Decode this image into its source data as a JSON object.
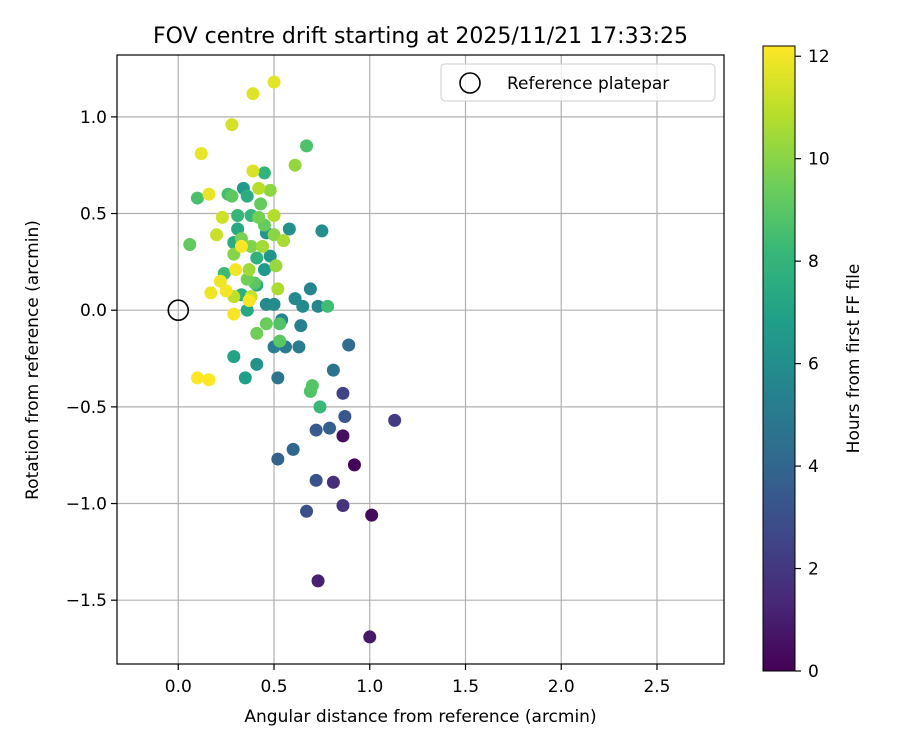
{
  "chart_data": {
    "type": "scatter",
    "title": "FOV centre drift starting at 2025/11/21 17:33:25",
    "xlabel": "Angular distance from reference (arcmin)",
    "ylabel": "Rotation from reference (arcmin)",
    "xlim": [
      -0.32,
      2.85
    ],
    "ylim": [
      -1.83,
      1.32
    ],
    "xticks": [
      0.0,
      0.5,
      1.0,
      1.5,
      2.0,
      2.5
    ],
    "xtick_labels": [
      "0.0",
      "0.5",
      "1.0",
      "1.5",
      "2.0",
      "2.5"
    ],
    "yticks": [
      1.0,
      0.5,
      0.0,
      -0.5,
      -1.0,
      -1.5
    ],
    "ytick_labels": [
      "1.0",
      "0.5",
      "0.0",
      "−0.5",
      "−1.0",
      "−1.5"
    ],
    "grid": true,
    "legend": {
      "location": "top-right",
      "label": "Reference platepar"
    },
    "reference_point": {
      "x": 0.0,
      "y": 0.0
    },
    "colorbar": {
      "label": "Hours from first FF file",
      "range": [
        0,
        12.2
      ],
      "ticks": [
        0,
        2,
        4,
        6,
        8,
        10,
        12
      ],
      "tick_labels": [
        "0",
        "2",
        "4",
        "6",
        "8",
        "10",
        "12"
      ],
      "colormap": "viridis"
    },
    "colormap_stops": [
      "#440154",
      "#482878",
      "#3e4989",
      "#31688e",
      "#26828e",
      "#1f9e89",
      "#35b779",
      "#6ece58",
      "#b5de2b",
      "#fde725"
    ],
    "points": [
      {
        "x": 0.92,
        "y": -0.8,
        "h": 0.1
      },
      {
        "x": 1.01,
        "y": -1.06,
        "h": 0.3
      },
      {
        "x": 0.86,
        "y": -0.65,
        "h": 0.5
      },
      {
        "x": 1.0,
        "y": -1.69,
        "h": 0.8
      },
      {
        "x": 0.73,
        "y": -1.4,
        "h": 1.1
      },
      {
        "x": 0.81,
        "y": -0.89,
        "h": 1.6
      },
      {
        "x": 0.86,
        "y": -1.01,
        "h": 1.8
      },
      {
        "x": 1.13,
        "y": -0.57,
        "h": 2.2
      },
      {
        "x": 0.86,
        "y": -0.43,
        "h": 2.5
      },
      {
        "x": 0.67,
        "y": -1.04,
        "h": 3.0
      },
      {
        "x": 0.72,
        "y": -0.88,
        "h": 3.2
      },
      {
        "x": 0.87,
        "y": -0.55,
        "h": 3.3
      },
      {
        "x": 0.72,
        "y": -0.62,
        "h": 3.5
      },
      {
        "x": 0.79,
        "y": -0.61,
        "h": 3.7
      },
      {
        "x": 0.52,
        "y": -0.77,
        "h": 3.8
      },
      {
        "x": 0.6,
        "y": -0.72,
        "h": 4.0
      },
      {
        "x": 0.89,
        "y": -0.18,
        "h": 4.3
      },
      {
        "x": 0.81,
        "y": -0.31,
        "h": 4.6
      },
      {
        "x": 0.52,
        "y": -0.35,
        "h": 4.8
      },
      {
        "x": 0.56,
        "y": -0.19,
        "h": 5.0
      },
      {
        "x": 0.63,
        "y": -0.19,
        "h": 5.1
      },
      {
        "x": 0.5,
        "y": -0.19,
        "h": 5.2
      },
      {
        "x": 0.64,
        "y": -0.08,
        "h": 5.3
      },
      {
        "x": 0.54,
        "y": -0.05,
        "h": 5.4
      },
      {
        "x": 0.69,
        "y": 0.11,
        "h": 5.5
      },
      {
        "x": 0.73,
        "y": 0.02,
        "h": 5.6
      },
      {
        "x": 0.61,
        "y": 0.06,
        "h": 5.7
      },
      {
        "x": 0.65,
        "y": 0.02,
        "h": 5.8
      },
      {
        "x": 0.46,
        "y": 0.03,
        "h": 5.8
      },
      {
        "x": 0.5,
        "y": 0.03,
        "h": 5.9
      },
      {
        "x": 0.75,
        "y": 0.41,
        "h": 6.0
      },
      {
        "x": 0.58,
        "y": 0.42,
        "h": 6.1
      },
      {
        "x": 0.41,
        "y": -0.28,
        "h": 6.2
      },
      {
        "x": 0.48,
        "y": 0.28,
        "h": 6.3
      },
      {
        "x": 0.46,
        "y": 0.4,
        "h": 6.4
      },
      {
        "x": 0.34,
        "y": 0.63,
        "h": 6.5
      },
      {
        "x": 0.45,
        "y": 0.21,
        "h": 6.6
      },
      {
        "x": 0.35,
        "y": -0.35,
        "h": 6.8
      },
      {
        "x": 0.29,
        "y": -0.24,
        "h": 7.0
      },
      {
        "x": 0.41,
        "y": 0.13,
        "h": 7.2
      },
      {
        "x": 0.36,
        "y": 0.0,
        "h": 7.3
      },
      {
        "x": 0.31,
        "y": 0.42,
        "h": 7.4
      },
      {
        "x": 0.29,
        "y": 0.35,
        "h": 7.5
      },
      {
        "x": 0.36,
        "y": 0.59,
        "h": 7.6
      },
      {
        "x": 0.33,
        "y": 0.08,
        "h": 7.7
      },
      {
        "x": 0.41,
        "y": 0.27,
        "h": 7.8
      },
      {
        "x": 0.45,
        "y": 0.71,
        "h": 7.9
      },
      {
        "x": 0.38,
        "y": 0.49,
        "h": 8.0
      },
      {
        "x": 0.31,
        "y": 0.49,
        "h": 8.1
      },
      {
        "x": 0.74,
        "y": -0.5,
        "h": 8.2
      },
      {
        "x": 0.24,
        "y": 0.19,
        "h": 8.3
      },
      {
        "x": 0.78,
        "y": 0.02,
        "h": 8.4
      },
      {
        "x": 0.26,
        "y": 0.6,
        "h": 8.5
      },
      {
        "x": 0.1,
        "y": 0.58,
        "h": 8.6
      },
      {
        "x": 0.67,
        "y": 0.85,
        "h": 8.7
      },
      {
        "x": 0.53,
        "y": -0.07,
        "h": 8.8
      },
      {
        "x": 0.69,
        "y": -0.42,
        "h": 8.8
      },
      {
        "x": 0.7,
        "y": -0.39,
        "h": 8.9
      },
      {
        "x": 0.53,
        "y": -0.16,
        "h": 9.0
      },
      {
        "x": 0.4,
        "y": 0.14,
        "h": 9.0
      },
      {
        "x": 0.28,
        "y": 0.59,
        "h": 9.1
      },
      {
        "x": 0.06,
        "y": 0.34,
        "h": 9.2
      },
      {
        "x": 0.45,
        "y": 0.44,
        "h": 9.3
      },
      {
        "x": 0.43,
        "y": 0.55,
        "h": 9.3
      },
      {
        "x": 0.46,
        "y": -0.07,
        "h": 9.4
      },
      {
        "x": 0.36,
        "y": 0.16,
        "h": 9.5
      },
      {
        "x": 0.41,
        "y": -0.12,
        "h": 9.5
      },
      {
        "x": 0.42,
        "y": 0.48,
        "h": 9.6
      },
      {
        "x": 0.33,
        "y": 0.37,
        "h": 9.7
      },
      {
        "x": 0.38,
        "y": 0.33,
        "h": 9.8
      },
      {
        "x": 0.29,
        "y": 0.29,
        "h": 9.9
      },
      {
        "x": 0.5,
        "y": 0.39,
        "h": 10.0
      },
      {
        "x": 0.48,
        "y": 0.62,
        "h": 10.1
      },
      {
        "x": 0.61,
        "y": 0.75,
        "h": 10.2
      },
      {
        "x": 0.51,
        "y": 0.23,
        "h": 10.3
      },
      {
        "x": 0.37,
        "y": 0.21,
        "h": 10.4
      },
      {
        "x": 0.44,
        "y": 0.33,
        "h": 10.5
      },
      {
        "x": 0.55,
        "y": 0.36,
        "h": 10.6
      },
      {
        "x": 0.52,
        "y": 0.11,
        "h": 10.7
      },
      {
        "x": 0.5,
        "y": 0.49,
        "h": 10.8
      },
      {
        "x": 0.42,
        "y": 0.63,
        "h": 10.9
      },
      {
        "x": 0.29,
        "y": 0.07,
        "h": 11.0
      },
      {
        "x": 0.38,
        "y": 0.07,
        "h": 11.1
      },
      {
        "x": 0.2,
        "y": 0.39,
        "h": 11.2
      },
      {
        "x": 0.23,
        "y": 0.48,
        "h": 11.3
      },
      {
        "x": 0.28,
        "y": 0.96,
        "h": 11.4
      },
      {
        "x": 0.39,
        "y": 0.72,
        "h": 11.5
      },
      {
        "x": 0.39,
        "y": 1.12,
        "h": 11.6
      },
      {
        "x": 0.5,
        "y": 1.18,
        "h": 11.7
      },
      {
        "x": 0.12,
        "y": 0.81,
        "h": 11.8
      },
      {
        "x": 0.16,
        "y": 0.6,
        "h": 11.8
      },
      {
        "x": 0.22,
        "y": 0.15,
        "h": 11.9
      },
      {
        "x": 0.17,
        "y": 0.09,
        "h": 11.9
      },
      {
        "x": 0.25,
        "y": 0.1,
        "h": 12.0
      },
      {
        "x": 0.3,
        "y": 0.21,
        "h": 12.0
      },
      {
        "x": 0.33,
        "y": 0.33,
        "h": 12.1
      },
      {
        "x": 0.37,
        "y": 0.05,
        "h": 12.1
      },
      {
        "x": 0.29,
        "y": -0.02,
        "h": 12.1
      },
      {
        "x": 0.1,
        "y": -0.35,
        "h": 12.2
      },
      {
        "x": 0.16,
        "y": -0.36,
        "h": 12.2
      }
    ]
  }
}
